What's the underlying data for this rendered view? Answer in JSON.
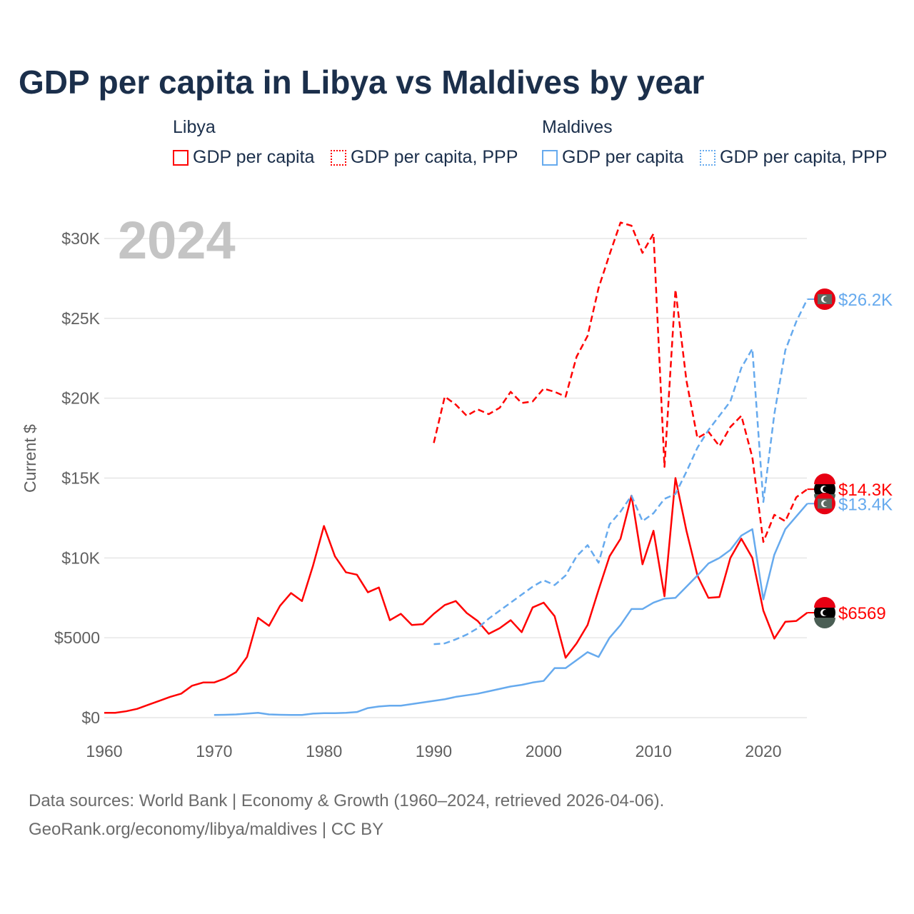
{
  "title": "GDP per capita in Libya vs Maldives by year",
  "legend": {
    "groups": [
      {
        "name": "Libya",
        "items": [
          "GDP per capita",
          "GDP per capita, PPP"
        ]
      },
      {
        "name": "Maldives",
        "items": [
          "GDP per capita",
          "GDP per capita, PPP"
        ]
      }
    ]
  },
  "footer": {
    "line1": "Data sources: World Bank | Economy & Growth (1960–2024, retrieved 2026-04-06).",
    "line2": "GeoRank.org/economy/libya/maldives | CC BY"
  },
  "chart_data": {
    "type": "line",
    "title": "GDP per capita in Libya vs Maldives by year",
    "year_watermark": "2024",
    "xlabel": "",
    "ylabel": "Current $",
    "xlim": [
      1960,
      2024
    ],
    "ylim": [
      0,
      31000
    ],
    "x_ticks": [
      1960,
      1970,
      1980,
      1990,
      2000,
      2010,
      2020
    ],
    "y_ticks": [
      {
        "v": 0,
        "label": "$0"
      },
      {
        "v": 5000,
        "label": "$5000"
      },
      {
        "v": 10000,
        "label": "$10K"
      },
      {
        "v": 15000,
        "label": "$15K"
      },
      {
        "v": 20000,
        "label": "$20K"
      },
      {
        "v": 25000,
        "label": "$25K"
      },
      {
        "v": 30000,
        "label": "$30K"
      }
    ],
    "grid": true,
    "legend_placement": "top",
    "series": [
      {
        "name": "Libya GDP per capita",
        "color": "#ff0000",
        "dashed": false,
        "start": 1960,
        "end_label": "$6569",
        "values": [
          0.3,
          0.3,
          0.4,
          0.55,
          0.8,
          1.05,
          1.3,
          1.5,
          2.0,
          2.2,
          2.2,
          2.45,
          2.85,
          3.8,
          6.25,
          5.75,
          7.0,
          7.8,
          7.3,
          9.5,
          12.0,
          10.1,
          9.1,
          8.95,
          7.85,
          8.15,
          6.1,
          6.5,
          5.8,
          5.85,
          6.5,
          7.05,
          7.3,
          6.55,
          6.05,
          5.25,
          5.6,
          6.1,
          5.35,
          6.9,
          7.2,
          6.35,
          3.75,
          4.65,
          5.8,
          8.0,
          10.1,
          11.2,
          13.9,
          9.6,
          11.7,
          7.6,
          15.0,
          11.7,
          8.9,
          7.5,
          7.55,
          10.0,
          11.2,
          10.0,
          6.7,
          4.95,
          6.0,
          6.05,
          6.57
        ]
      },
      {
        "name": "Libya GDP per capita, PPP",
        "color": "#ff0000",
        "dashed": true,
        "start": 1990,
        "end_label": "$14.3K",
        "values": [
          17.2,
          20.1,
          19.6,
          18.9,
          19.3,
          19.0,
          19.4,
          20.4,
          19.7,
          19.8,
          20.6,
          20.4,
          20.1,
          22.6,
          23.9,
          26.9,
          29.0,
          31.0,
          30.8,
          29.1,
          30.3,
          15.7,
          26.8,
          21.1,
          17.5,
          17.9,
          17.0,
          18.2,
          18.9,
          16.3,
          11.0,
          12.7,
          12.3,
          13.8,
          14.3
        ]
      },
      {
        "name": "Maldives GDP per capita",
        "color": "#66aaee",
        "dashed": false,
        "start": 1970,
        "end_label": "$13.4K",
        "values": [
          0.17,
          0.18,
          0.2,
          0.25,
          0.3,
          0.2,
          0.18,
          0.17,
          0.17,
          0.25,
          0.28,
          0.28,
          0.3,
          0.35,
          0.6,
          0.7,
          0.75,
          0.75,
          0.85,
          0.95,
          1.05,
          1.15,
          1.3,
          1.4,
          1.5,
          1.65,
          1.8,
          1.95,
          2.05,
          2.2,
          2.3,
          3.1,
          3.1,
          3.6,
          4.1,
          3.8,
          5.0,
          5.8,
          6.8,
          6.8,
          7.2,
          7.45,
          7.5,
          8.2,
          8.9,
          9.65,
          10.0,
          10.5,
          11.4,
          11.8,
          7.4,
          10.2,
          11.8,
          12.6,
          13.4
        ]
      },
      {
        "name": "Maldives GDP per capita, PPP",
        "color": "#66aaee",
        "dashed": true,
        "start": 1990,
        "end_label": "$26.2K",
        "values": [
          4.6,
          4.65,
          4.9,
          5.2,
          5.6,
          6.2,
          6.7,
          7.2,
          7.7,
          8.2,
          8.6,
          8.3,
          8.9,
          10.1,
          10.8,
          9.7,
          12.1,
          12.9,
          13.9,
          12.3,
          12.8,
          13.7,
          14.0,
          15.4,
          16.9,
          18.0,
          18.9,
          19.8,
          21.9,
          23.1,
          13.5,
          19.0,
          23.0,
          24.8,
          26.2
        ]
      }
    ],
    "values_unit": "thousands of current US$"
  }
}
